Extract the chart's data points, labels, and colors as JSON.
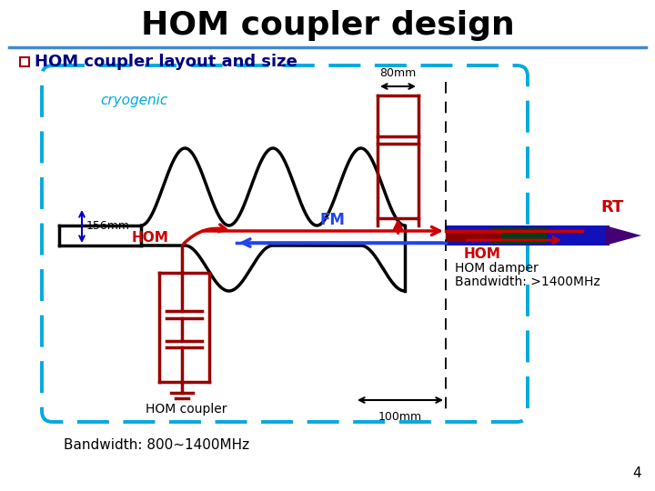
{
  "title": "HOM coupler design",
  "subtitle": "HOM coupler layout and size",
  "bg_color": "#ffffff",
  "title_color": "#000000",
  "subtitle_color": "#000080",
  "bullet_color": "#aa0000",
  "cyan_dash_color": "#00aadd",
  "red_color": "#cc0000",
  "blue_color": "#0000cc",
  "dark_red_color": "#990000",
  "black_color": "#000000",
  "green_color": "#005500",
  "purple_color": "#440088",
  "page_num": "4",
  "label_cryogenic": "cryogenic",
  "label_RT": "RT",
  "label_156mm": "156mm",
  "label_80mm": "80mm",
  "label_100mm": "100mm",
  "label_HOM_left": "HOM",
  "label_FM": "FM",
  "label_HOM_right": "HOM",
  "label_HOM_damper": "HOM damper",
  "label_bandwidth_damper": "Bandwidth: >1400MHz",
  "label_HOM_coupler": "HOM coupler",
  "label_bandwidth_coupler": "Bandwidth: 800~1400MHz"
}
